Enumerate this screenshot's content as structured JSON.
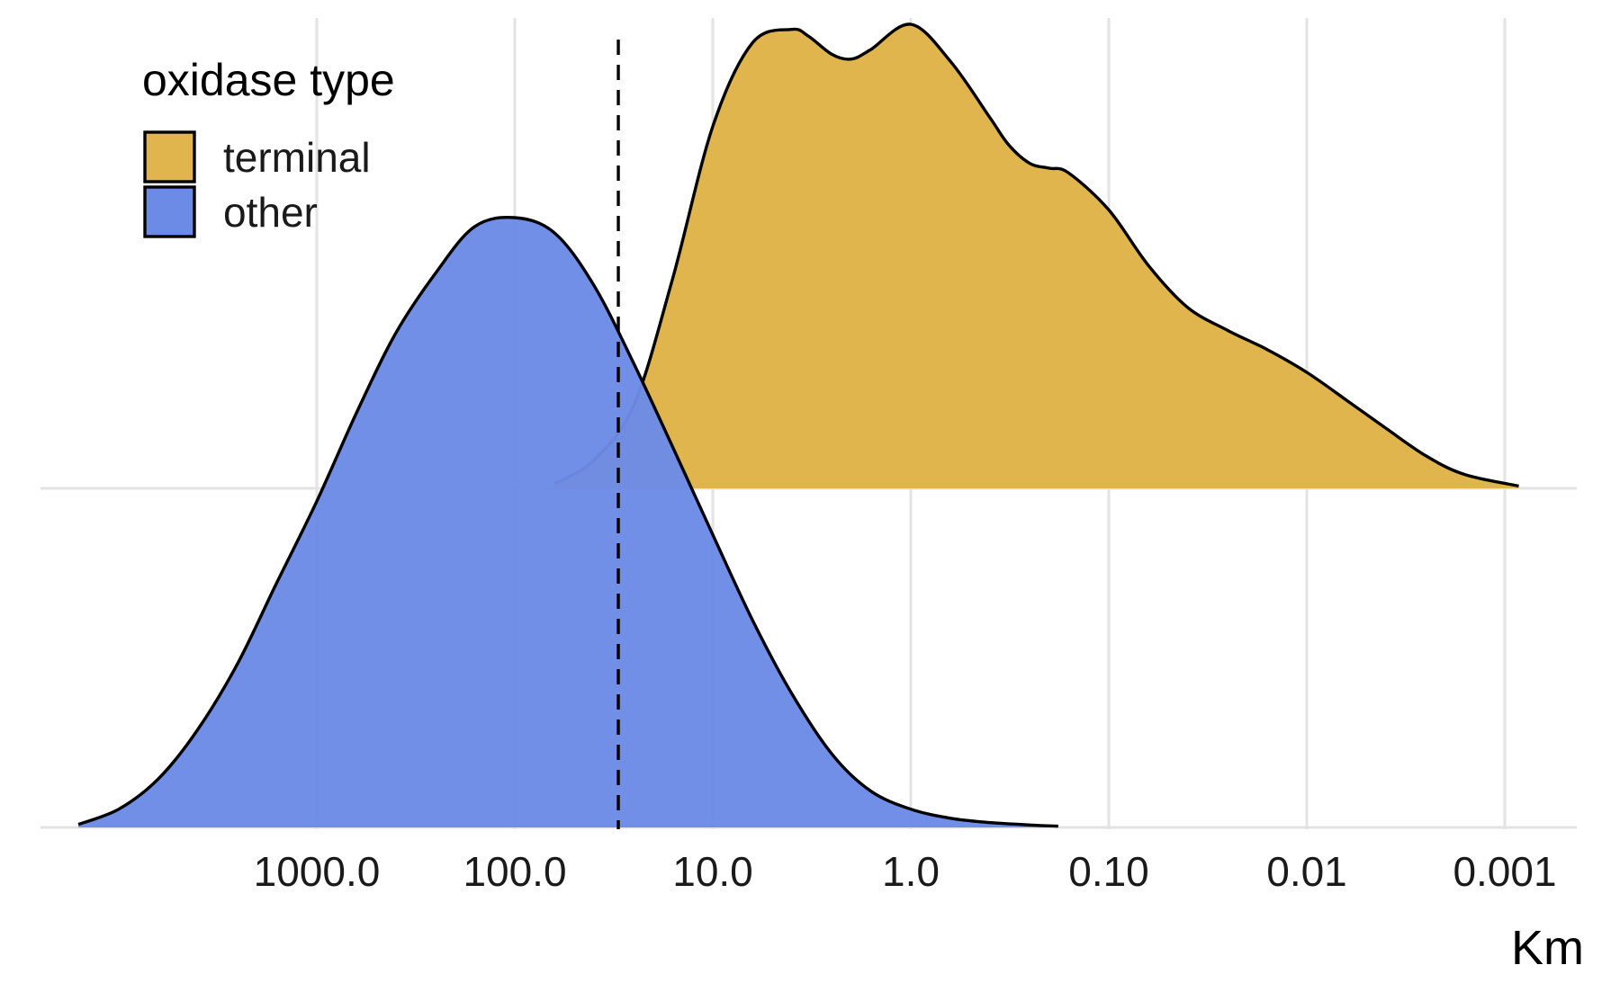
{
  "chart_data": {
    "type": "ridgeline density",
    "xlabel": "Km",
    "x_scale": "log10, reversed",
    "x_ticks": [
      1000,
      100,
      10,
      1,
      0.1,
      0.01,
      0.001
    ],
    "x_tick_labels": [
      "1000.0",
      "100.0",
      "10.0",
      "1.0",
      "0.10",
      "0.01",
      "0.001"
    ],
    "grid": true,
    "reference_line": {
      "x": 30,
      "style": "dashed",
      "color": "#000000"
    },
    "legend": {
      "title": "oxidase type",
      "placement": "top-left"
    },
    "series": [
      {
        "name": "terminal",
        "color": "#E1B54E",
        "baseline_row": 2,
        "x": [
          63,
          40,
          25,
          16,
          10,
          6.3,
          4,
          3.3,
          2.5,
          2,
          1.6,
          1,
          0.63,
          0.4,
          0.32,
          0.25,
          0.2,
          0.16,
          0.1,
          0.063,
          0.04,
          0.025,
          0.016,
          0.01,
          0.0063,
          0.004,
          0.0025,
          0.0016,
          0.00085
        ],
        "density": [
          0.01,
          0.06,
          0.18,
          0.45,
          0.78,
          0.96,
          0.989,
          0.975,
          0.935,
          0.925,
          0.945,
          1.0,
          0.92,
          0.8,
          0.74,
          0.7,
          0.69,
          0.68,
          0.6,
          0.48,
          0.39,
          0.34,
          0.3,
          0.25,
          0.19,
          0.13,
          0.07,
          0.03,
          0.005
        ]
      },
      {
        "name": "other",
        "color": "#6C8BE6",
        "baseline_row": 1,
        "x": [
          16000,
          10000,
          6300,
          4000,
          2500,
          1600,
          1000,
          630,
          400,
          250,
          160,
          100,
          63,
          40,
          25,
          16,
          10,
          6.3,
          4,
          2.5,
          1.6,
          1,
          0.63,
          0.4,
          0.25,
          0.18
        ],
        "density": [
          0.005,
          0.03,
          0.08,
          0.16,
          0.27,
          0.4,
          0.535,
          0.68,
          0.81,
          0.91,
          0.985,
          1.0,
          0.975,
          0.89,
          0.76,
          0.625,
          0.48,
          0.34,
          0.22,
          0.12,
          0.06,
          0.03,
          0.015,
          0.008,
          0.004,
          0.002
        ]
      }
    ]
  }
}
